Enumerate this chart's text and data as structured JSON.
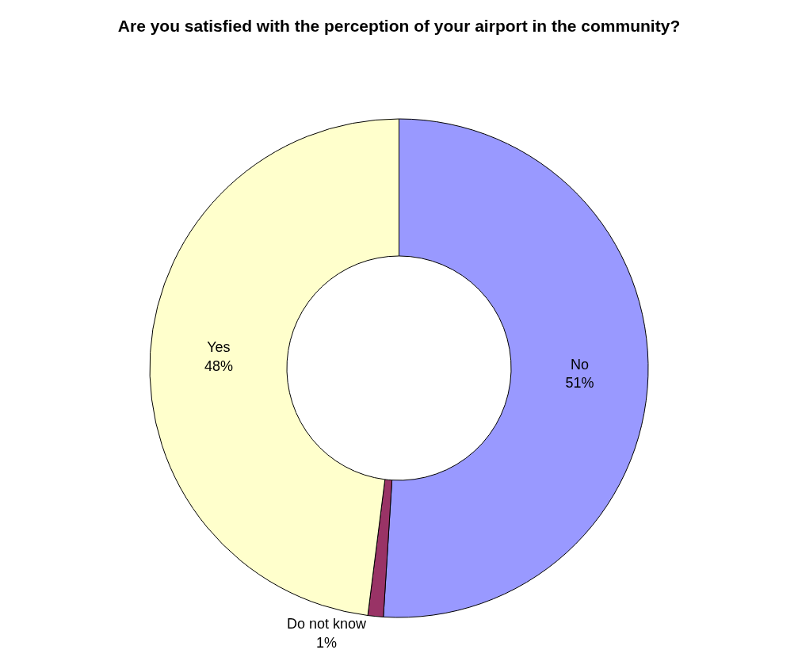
{
  "chart_data": {
    "type": "donut",
    "title": "Are you satisfied with the perception of your airport in the community?",
    "categories": [
      "No",
      "Do not know",
      "Yes"
    ],
    "values": [
      51,
      1,
      48
    ],
    "value_labels": [
      "51%",
      "1%",
      "48%"
    ],
    "colors": [
      "#9999ff",
      "#993366",
      "#ffffcc"
    ],
    "legend": false
  }
}
